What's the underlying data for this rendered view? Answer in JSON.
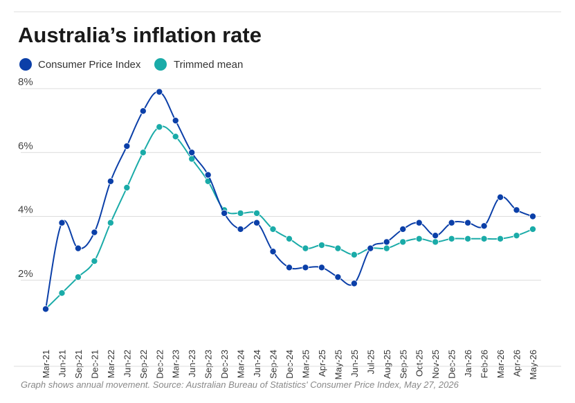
{
  "chart_data": {
    "type": "line",
    "title": "Australia’s inflation rate",
    "xlabel": "",
    "ylabel": "",
    "categories": [
      "Mar-21",
      "Jun-21",
      "Sep-21",
      "Dec-21",
      "Mar-22",
      "Jun-22",
      "Sep-22",
      "Dec-22",
      "Mar-23",
      "Jun-23",
      "Sep-23",
      "Dec-23",
      "Mar-24",
      "Jun-24",
      "Sep-24",
      "Dec-24",
      "Mar-25",
      "Apr-25",
      "May-25",
      "Jun-25",
      "Jul-25",
      "Aug-25",
      "Sep-25",
      "Oct-25",
      "Nov-25",
      "Dec-25",
      "Jan-26",
      "Feb-26",
      "Mar-26",
      "Apr-26",
      "May-26"
    ],
    "series": [
      {
        "name": "Consumer Price Index",
        "color": "#0b3fa8",
        "values": [
          1.1,
          3.8,
          3.0,
          3.5,
          5.1,
          6.2,
          7.3,
          7.9,
          7.0,
          6.0,
          5.3,
          4.1,
          3.6,
          3.8,
          2.9,
          2.4,
          2.4,
          2.4,
          2.1,
          1.9,
          3.0,
          3.2,
          3.6,
          3.8,
          3.4,
          3.8,
          3.8,
          3.7,
          4.6,
          4.2,
          4.0
        ]
      },
      {
        "name": "Trimmed mean",
        "color": "#1aaba8",
        "values": [
          1.1,
          1.6,
          2.1,
          2.6,
          3.8,
          4.9,
          6.0,
          6.8,
          6.5,
          5.8,
          5.1,
          4.2,
          4.1,
          4.1,
          3.6,
          3.3,
          3.0,
          3.1,
          3.0,
          2.8,
          3.0,
          3.0,
          3.2,
          3.3,
          3.2,
          3.3,
          3.3,
          3.3,
          3.3,
          3.4,
          3.6
        ]
      }
    ],
    "ylim": [
      0,
      8
    ],
    "yticks": [
      {
        "value": 2,
        "label": "2%"
      },
      {
        "value": 4,
        "label": "4%"
      },
      {
        "value": 6,
        "label": "6%"
      },
      {
        "value": 8,
        "label": "8%"
      }
    ],
    "grid": true,
    "legend": "top-left"
  },
  "footnote": "Graph shows annual movement. Source:  Australian Bureau of Statistics' Consumer Price Index, May 27, 2026"
}
